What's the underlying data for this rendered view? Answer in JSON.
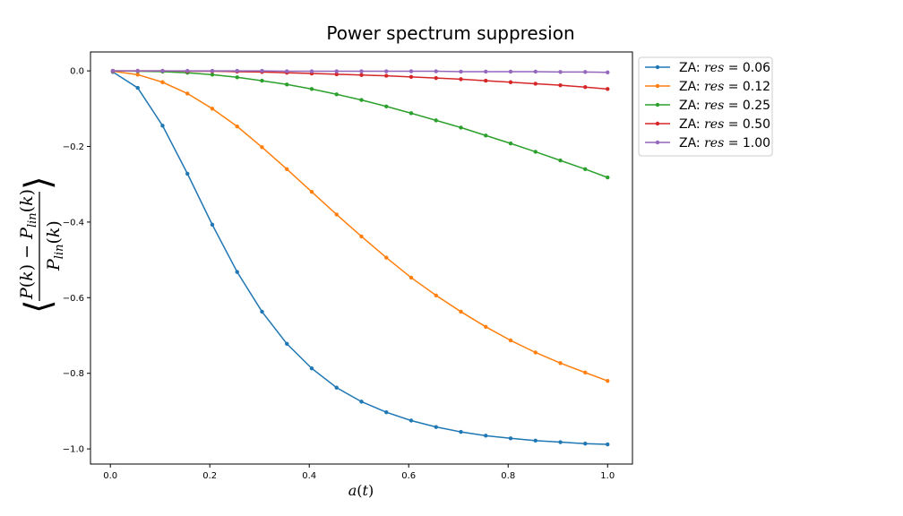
{
  "chart_data": {
    "type": "line",
    "title": "Power spectrum suppresion",
    "xlabel": "a(t)",
    "ylabel": "⟨(P(k) − P_lin(k)) / P_lin(k)⟩",
    "xlim": [
      -0.04,
      1.05
    ],
    "ylim": [
      -1.04,
      0.05
    ],
    "xticks": [
      0.0,
      0.2,
      0.4,
      0.6,
      0.8,
      1.0
    ],
    "xtick_labels": [
      "0.0",
      "0.2",
      "0.4",
      "0.6",
      "0.8",
      "1.0"
    ],
    "yticks": [
      0.0,
      -0.2,
      -0.4,
      -0.6,
      -0.8,
      -1.0
    ],
    "ytick_labels": [
      "0.0",
      "−0.2",
      "−0.4",
      "−0.6",
      "−0.8",
      "−1.0"
    ],
    "grid": false,
    "legend_position": "outside-upper-right",
    "x": [
      0.005,
      0.055,
      0.105,
      0.155,
      0.205,
      0.255,
      0.305,
      0.355,
      0.405,
      0.455,
      0.505,
      0.555,
      0.605,
      0.655,
      0.705,
      0.755,
      0.805,
      0.855,
      0.905,
      0.955,
      1.0
    ],
    "series": [
      {
        "name": "ZA: res = 0.06",
        "legend_prefix": "ZA: ",
        "legend_var": "res",
        "legend_value": " = 0.06",
        "color": "#1f77b4",
        "values": [
          -0.003,
          -0.045,
          -0.145,
          -0.272,
          -0.407,
          -0.532,
          -0.637,
          -0.722,
          -0.787,
          -0.838,
          -0.875,
          -0.903,
          -0.925,
          -0.942,
          -0.955,
          -0.965,
          -0.972,
          -0.978,
          -0.982,
          -0.986,
          -0.988
        ]
      },
      {
        "name": "ZA: res = 0.12",
        "legend_prefix": "ZA: ",
        "legend_var": "res",
        "legend_value": " = 0.12",
        "color": "#ff7f0e",
        "values": [
          -0.001,
          -0.01,
          -0.03,
          -0.06,
          -0.1,
          -0.147,
          -0.202,
          -0.26,
          -0.32,
          -0.38,
          -0.438,
          -0.494,
          -0.547,
          -0.594,
          -0.637,
          -0.677,
          -0.713,
          -0.745,
          -0.773,
          -0.798,
          -0.82
        ]
      },
      {
        "name": "ZA: res = 0.25",
        "legend_prefix": "ZA: ",
        "legend_var": "res",
        "legend_value": " = 0.25",
        "color": "#2ca02c",
        "values": [
          0.0,
          -0.001,
          -0.002,
          -0.005,
          -0.01,
          -0.017,
          -0.026,
          -0.036,
          -0.048,
          -0.062,
          -0.077,
          -0.094,
          -0.112,
          -0.131,
          -0.15,
          -0.171,
          -0.192,
          -0.214,
          -0.237,
          -0.26,
          -0.282
        ]
      },
      {
        "name": "ZA: res = 0.50",
        "legend_prefix": "ZA: ",
        "legend_var": "res",
        "legend_value": " = 0.50",
        "color": "#d62728",
        "values": [
          0.0,
          0.0,
          0.0,
          -0.001,
          -0.001,
          -0.002,
          -0.003,
          -0.005,
          -0.007,
          -0.009,
          -0.011,
          -0.013,
          -0.016,
          -0.019,
          -0.022,
          -0.026,
          -0.03,
          -0.034,
          -0.038,
          -0.043,
          -0.048
        ]
      },
      {
        "name": "ZA: res = 1.00",
        "legend_prefix": "ZA: ",
        "legend_var": "res",
        "legend_value": " = 1.00",
        "color": "#9467bd",
        "values": [
          0.0,
          0.0,
          0.0,
          0.0,
          0.0,
          0.0,
          0.0,
          -0.001,
          -0.001,
          -0.001,
          -0.001,
          -0.001,
          -0.001,
          -0.001,
          -0.002,
          -0.002,
          -0.002,
          -0.002,
          -0.003,
          -0.003,
          -0.004
        ]
      }
    ]
  }
}
